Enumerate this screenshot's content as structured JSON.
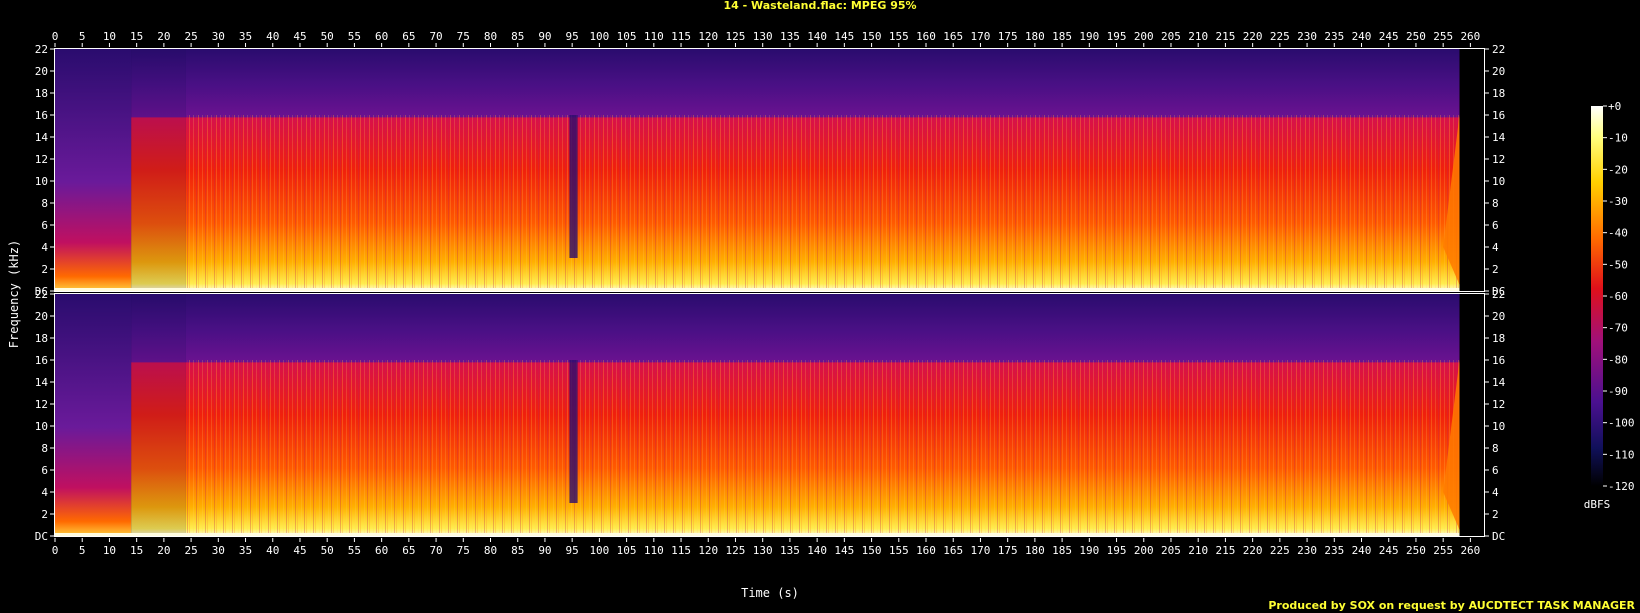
{
  "chart_data": {
    "type": "heatmap",
    "title": "14 - Wasteland.flac: MPEG 95%",
    "xlabel": "Time (s)",
    "ylabel": "Frequency (kHz)",
    "x_ticks": [
      0,
      5,
      10,
      15,
      20,
      25,
      30,
      35,
      40,
      45,
      50,
      55,
      60,
      65,
      70,
      75,
      80,
      85,
      90,
      95,
      100,
      105,
      110,
      115,
      120,
      125,
      130,
      135,
      140,
      145,
      150,
      155,
      160,
      165,
      170,
      175,
      180,
      185,
      190,
      195,
      200,
      205,
      210,
      215,
      220,
      225,
      230,
      235,
      240,
      245,
      250,
      255,
      260
    ],
    "xlim": [
      0,
      262.5
    ],
    "y_ticks": [
      "DC",
      "2",
      "4",
      "6",
      "8",
      "10",
      "12",
      "14",
      "16",
      "18",
      "20",
      "22"
    ],
    "ylim": [
      0,
      22
    ],
    "channels": 2,
    "colorbar": {
      "label": "dBFS",
      "ticks": [
        "+0",
        "-10",
        "-20",
        "-30",
        "-40",
        "-50",
        "-60",
        "-70",
        "-80",
        "-90",
        "-100",
        "-110",
        "-120"
      ],
      "range": [
        -120,
        0
      ]
    },
    "spectral_cutoff_khz": 16,
    "signal_end_s": 258,
    "credit": "Produced by SOX on request by AUCDTECT TASK MANAGER"
  }
}
